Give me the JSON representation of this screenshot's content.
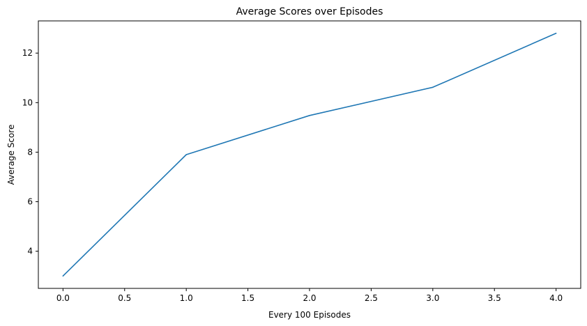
{
  "chart_data": {
    "type": "line",
    "title": "Average Scores over Episodes",
    "xlabel": "Every 100 Episodes",
    "ylabel": "Average Score",
    "xlim": [
      -0.2,
      4.2
    ],
    "ylim": [
      2.5,
      13.3
    ],
    "xticks": [
      0.0,
      0.5,
      1.0,
      1.5,
      2.0,
      2.5,
      3.0,
      3.5,
      4.0
    ],
    "xtick_labels": [
      "0.0",
      "0.5",
      "1.0",
      "1.5",
      "2.0",
      "2.5",
      "3.0",
      "3.5",
      "4.0"
    ],
    "yticks": [
      4,
      6,
      8,
      10,
      12
    ],
    "ytick_labels": [
      "4",
      "6",
      "8",
      "10",
      "12"
    ],
    "grid": false,
    "series": [
      {
        "name": "Average Score",
        "color": "#1f77b4",
        "x": [
          0,
          1,
          2,
          3,
          4
        ],
        "y": [
          3.0,
          7.9,
          9.48,
          10.62,
          12.8
        ]
      }
    ]
  }
}
